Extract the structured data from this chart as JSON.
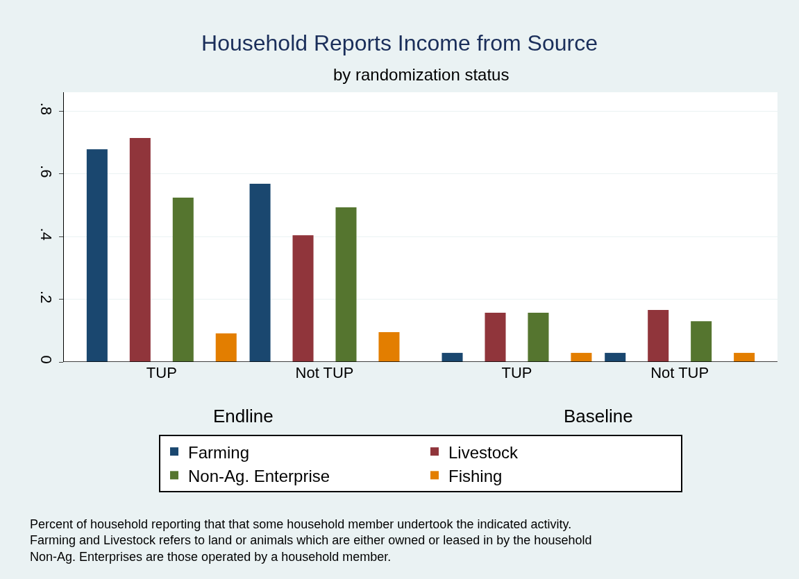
{
  "chart_data": {
    "type": "bar",
    "title": "Household Reports Income from Source",
    "subtitle": "by randomization status",
    "categories": [
      "TUP",
      "Not TUP",
      "TUP",
      "Not TUP"
    ],
    "series": [
      {
        "name": "Farming",
        "color": "#1a476f",
        "values": [
          0.678,
          0.568,
          0.029,
          0.029
        ]
      },
      {
        "name": "Livestock",
        "color": "#90353b",
        "values": [
          0.714,
          0.404,
          0.157,
          0.166
        ]
      },
      {
        "name": "Non-Ag. Enterprise",
        "color": "#55752f",
        "values": [
          0.524,
          0.493,
          0.157,
          0.13
        ]
      },
      {
        "name": "Fishing",
        "color": "#e37e00",
        "values": [
          0.091,
          0.095,
          0.029,
          0.029
        ]
      }
    ],
    "ylim": [
      0,
      0.86
    ],
    "yticks": [
      0,
      {
        "value": 0.2,
        "label": ".2"
      },
      {
        "value": 0.4,
        "label": ".4"
      },
      {
        "value": 0.6,
        "label": ".6"
      },
      {
        "value": 0.8,
        "label": ".8"
      }
    ],
    "grid": "y",
    "legend": "bottom",
    "annotations": [
      "Endline",
      "Baseline",
      "Percent of household reporting that that some household member undertook the indicated activity.\nFarming and Livestock refers to land or animals which are either owned or leased in by the household\nNon-Ag. Enterprises are those operated by a household member."
    ]
  }
}
